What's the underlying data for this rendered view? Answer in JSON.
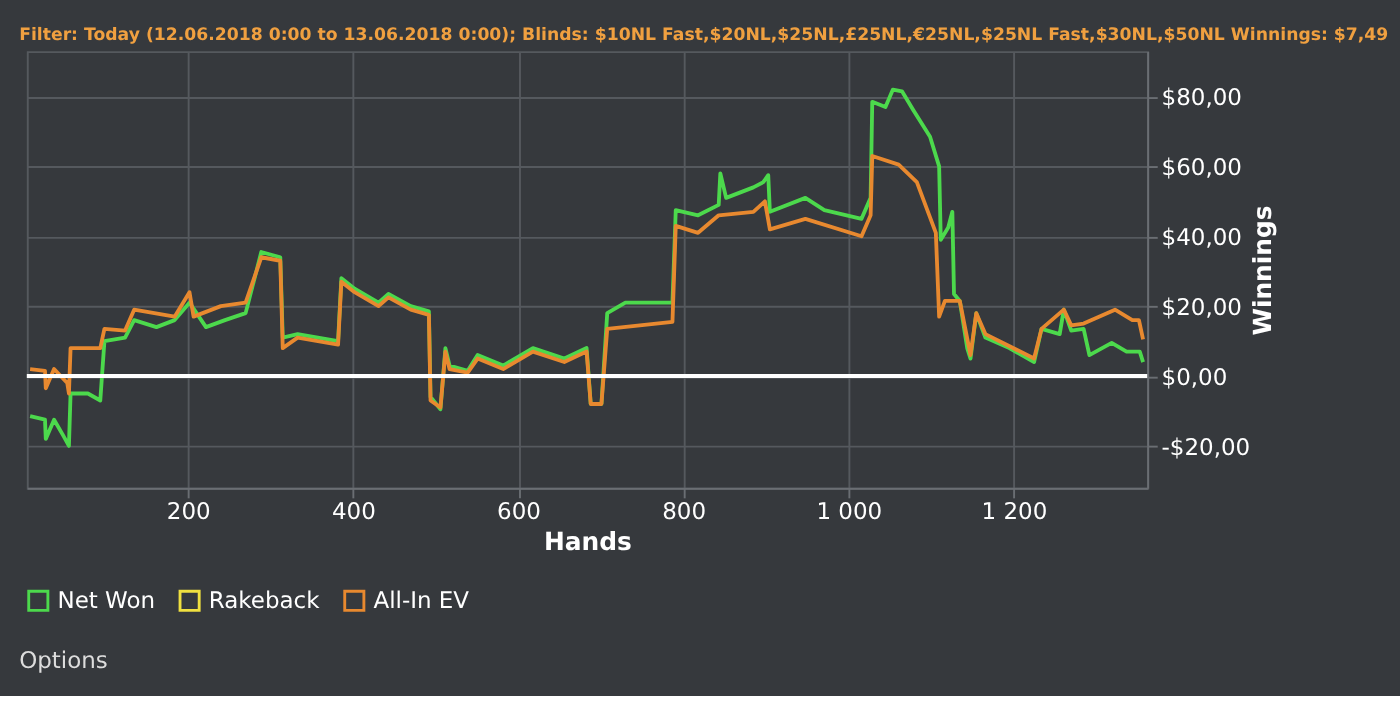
{
  "chart_data": {
    "type": "line",
    "title": "Filter: Today (12.06.2018 0:00 to 13.06.2018 0:00); Blinds: $10NL Fast,$20NL,$25NL,£25NL,€25NL,$25NL Fast,$30NL,$50NL Winnings: $7,49",
    "xlabel": "Hands",
    "ylabel": "Winnings",
    "xlim": [
      5,
      1362
    ],
    "ylim": [
      -32,
      93
    ],
    "xticks": [
      200,
      400,
      600,
      800,
      {
        "value": 1000,
        "label": "1 000"
      },
      {
        "value": 1200,
        "label": "1 200"
      }
    ],
    "yticks": [
      {
        "value": -20,
        "label": "-$20,00"
      },
      {
        "value": 0,
        "label": "$0,00"
      },
      {
        "value": 20,
        "label": "$20,00"
      },
      {
        "value": 40,
        "label": "$40,00"
      },
      {
        "value": 60,
        "label": "$60,00"
      },
      {
        "value": 80,
        "label": "$80,00"
      }
    ],
    "grid": true,
    "legend": "bottom",
    "ref_lines": [
      {
        "axis": "y",
        "value": 0,
        "color": "#ffffff"
      }
    ],
    "annotations": [
      "Options"
    ],
    "series": [
      {
        "name": "Net Won",
        "color": "#4cd94c",
        "x": [
          9,
          27,
          28,
          38,
          49,
          56,
          58,
          79,
          94,
          99,
          124,
          135,
          162,
          184,
          202,
          222,
          245,
          270,
          289,
          312,
          315,
          333,
          382,
          386,
          402,
          431,
          443,
          470,
          492,
          494,
          506,
          512,
          517,
          539,
          551,
          582,
          618,
          656,
          683,
          688,
          701,
          708,
          730,
          775,
          787,
          791,
          818,
          843,
          845,
          852,
          885,
          897,
          903,
          905,
          948,
          971,
          1016,
          1027,
          1029,
          1045,
          1054,
          1065,
          1079,
          1099,
          1110,
          1112,
          1121,
          1126,
          1128,
          1135,
          1144,
          1148,
          1155,
          1166,
          1195,
          1225,
          1234,
          1256,
          1261,
          1270,
          1285,
          1292,
          1319,
          1337,
          1353,
          1357
        ],
        "values": [
          -11.5,
          -12.5,
          -18,
          -12.5,
          -17,
          -20,
          -5,
          -5,
          -7,
          10,
          11,
          16,
          14,
          16,
          21,
          14,
          16,
          18,
          35.5,
          34,
          11,
          12,
          10,
          28,
          25,
          21,
          23.5,
          20,
          18.5,
          -6,
          -9.5,
          8,
          3,
          1.5,
          6,
          3,
          8,
          5,
          8,
          -8,
          -8,
          18,
          21,
          21,
          21,
          47.5,
          46,
          49,
          58,
          51,
          54,
          55.5,
          57.5,
          47,
          51,
          47.5,
          45,
          51,
          78.5,
          77,
          82,
          81.5,
          76,
          68.5,
          60,
          39,
          42.5,
          47,
          23.5,
          21.5,
          8,
          5,
          18,
          11,
          8,
          4,
          13.5,
          12,
          19,
          13,
          13.5,
          6,
          9.5,
          7,
          7,
          4
        ]
      },
      {
        "name": "Rakeback",
        "color": "#f0e040"
      },
      {
        "name": "All-In EV",
        "color": "#e8892f",
        "x": [
          9,
          27,
          28,
          38,
          54,
          56,
          58,
          94,
          99,
          124,
          135,
          184,
          202,
          207,
          240,
          270,
          289,
          312,
          315,
          333,
          382,
          386,
          402,
          431,
          443,
          470,
          492,
          494,
          506,
          512,
          517,
          539,
          551,
          582,
          618,
          656,
          683,
          688,
          701,
          708,
          787,
          791,
          818,
          843,
          885,
          899,
          905,
          948,
          1016,
          1027,
          1029,
          1061,
          1083,
          1106,
          1110,
          1117,
          1135,
          1148,
          1155,
          1166,
          1225,
          1234,
          1261,
          1270,
          1285,
          1323,
          1344,
          1352,
          1357
        ],
        "values": [
          2,
          1.5,
          -3.5,
          2,
          -2,
          -5,
          8,
          8,
          13.5,
          13,
          19,
          17,
          24,
          17,
          20,
          21,
          34,
          33,
          8,
          11,
          9,
          27,
          24,
          20,
          22.5,
          19,
          17.5,
          -7,
          -9,
          7,
          2,
          1,
          5,
          2,
          7,
          4,
          7,
          -8,
          -8,
          13.5,
          15.5,
          43,
          41,
          46,
          47,
          50,
          42,
          45,
          40,
          46,
          63,
          60.5,
          55.5,
          41,
          17,
          21.5,
          21.5,
          6,
          18,
          12,
          5,
          13.5,
          19,
          14.5,
          15,
          19,
          16,
          16,
          10.5
        ]
      }
    ]
  }
}
